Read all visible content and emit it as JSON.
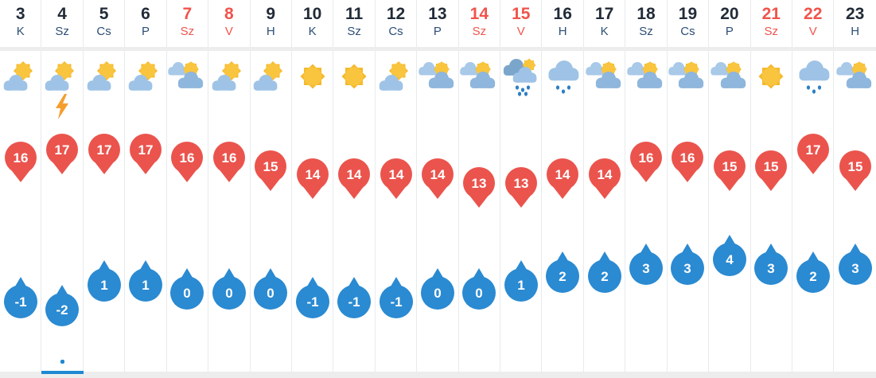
{
  "widget": {
    "type": "daily-weather-forecast-strip",
    "selected_day": 4
  },
  "colors": {
    "background": "#ededed",
    "cell_background": "#ffffff",
    "separator": "#e8eaec",
    "day_number": "#222c38",
    "day_label": "#2c4e76",
    "weekend_text": "#f0544c",
    "high_pin": "#ea544d",
    "low_drop": "#2a8ad2",
    "selection_accent": "#1e88d2",
    "sun": "#f9c53e",
    "sun_rays": "#f5b92e",
    "cloud_light": "#9ec3e6",
    "cloud_mid": "#8fb6dc",
    "cloud_dark": "#7ba6cc",
    "raindrop": "#2e7fc2",
    "lightning": "#f59e2f"
  },
  "columns": [
    {
      "day": "3",
      "dow": "K",
      "weekend": false,
      "icon": "partly-sunny",
      "high": 16,
      "low": -1,
      "selected": false
    },
    {
      "day": "4",
      "dow": "Sz",
      "weekend": false,
      "icon": "partly-sunny-thunder",
      "high": 17,
      "low": -2,
      "selected": true
    },
    {
      "day": "5",
      "dow": "Cs",
      "weekend": false,
      "icon": "partly-sunny",
      "high": 17,
      "low": 1,
      "selected": false
    },
    {
      "day": "6",
      "dow": "P",
      "weekend": false,
      "icon": "partly-sunny",
      "high": 17,
      "low": 1,
      "selected": false
    },
    {
      "day": "7",
      "dow": "Sz",
      "weekend": true,
      "icon": "mostly-cloudy-sun",
      "high": 16,
      "low": 0,
      "selected": false
    },
    {
      "day": "8",
      "dow": "V",
      "weekend": true,
      "icon": "partly-sunny",
      "high": 16,
      "low": 0,
      "selected": false
    },
    {
      "day": "9",
      "dow": "H",
      "weekend": false,
      "icon": "partly-sunny",
      "high": 15,
      "low": 0,
      "selected": false
    },
    {
      "day": "10",
      "dow": "K",
      "weekend": false,
      "icon": "sunny",
      "high": 14,
      "low": -1,
      "selected": false
    },
    {
      "day": "11",
      "dow": "Sz",
      "weekend": false,
      "icon": "sunny",
      "high": 14,
      "low": -1,
      "selected": false
    },
    {
      "day": "12",
      "dow": "Cs",
      "weekend": false,
      "icon": "partly-sunny",
      "high": 14,
      "low": -1,
      "selected": false
    },
    {
      "day": "13",
      "dow": "P",
      "weekend": false,
      "icon": "mostly-cloudy-sun",
      "high": 14,
      "low": 0,
      "selected": false
    },
    {
      "day": "14",
      "dow": "Sz",
      "weekend": true,
      "icon": "mostly-cloudy-sun",
      "high": 13,
      "low": 0,
      "selected": false
    },
    {
      "day": "15",
      "dow": "V",
      "weekend": true,
      "icon": "sun-showers",
      "high": 13,
      "low": 1,
      "selected": false
    },
    {
      "day": "16",
      "dow": "H",
      "weekend": false,
      "icon": "rain",
      "high": 14,
      "low": 2,
      "selected": false
    },
    {
      "day": "17",
      "dow": "K",
      "weekend": false,
      "icon": "mostly-cloudy-sun",
      "high": 14,
      "low": 2,
      "selected": false
    },
    {
      "day": "18",
      "dow": "Sz",
      "weekend": false,
      "icon": "mostly-cloudy-sun",
      "high": 16,
      "low": 3,
      "selected": false
    },
    {
      "day": "19",
      "dow": "Cs",
      "weekend": false,
      "icon": "mostly-cloudy-sun",
      "high": 16,
      "low": 3,
      "selected": false
    },
    {
      "day": "20",
      "dow": "P",
      "weekend": false,
      "icon": "mostly-cloudy-sun",
      "high": 15,
      "low": 4,
      "selected": false
    },
    {
      "day": "21",
      "dow": "Sz",
      "weekend": true,
      "icon": "sunny",
      "high": 15,
      "low": 3,
      "selected": false
    },
    {
      "day": "22",
      "dow": "V",
      "weekend": true,
      "icon": "rain",
      "high": 17,
      "low": 2,
      "selected": false
    },
    {
      "day": "23",
      "dow": "H",
      "weekend": false,
      "icon": "mostly-cloudy-sun",
      "high": 15,
      "low": 3,
      "selected": false
    }
  ]
}
